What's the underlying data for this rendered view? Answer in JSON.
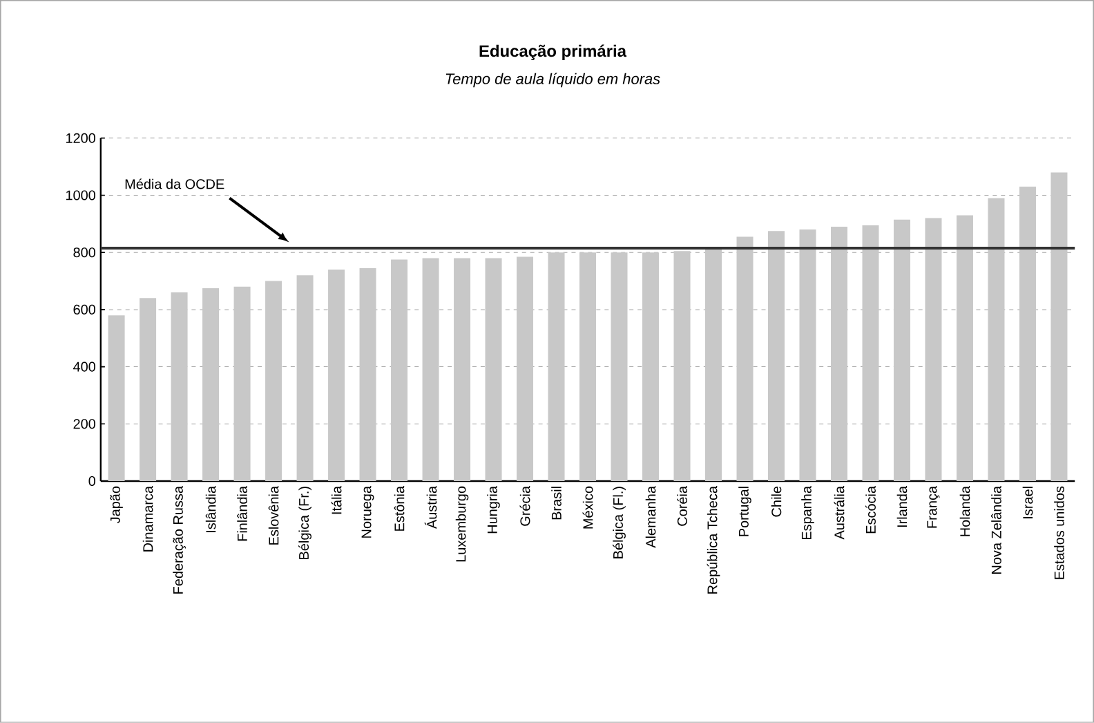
{
  "chart_data": {
    "type": "bar",
    "title": "Educação primária",
    "subtitle": "Tempo de aula líquido em horas",
    "categories": [
      "Japão",
      "Dinamarca",
      "Federação Russa",
      "Islândia",
      "Finlândia",
      "Eslovênia",
      "Bélgica (Fr.)",
      "Itália",
      "Noruega",
      "Estônia",
      "Áustria",
      "Luxemburgo",
      "Hungria",
      "Grécia",
      "Brasil",
      "México",
      "Bélgica (Fl.)",
      "Alemanha",
      "Coréia",
      "República Tcheca",
      "Portugal",
      "Chile",
      "Espanha",
      "Austrália",
      "Escócia",
      "Irlanda",
      "França",
      "Holanda",
      "Nova Zelândia",
      "Israel",
      "Estados unidos"
    ],
    "values": [
      580,
      640,
      660,
      675,
      680,
      700,
      720,
      740,
      745,
      775,
      780,
      780,
      780,
      785,
      800,
      800,
      800,
      800,
      805,
      810,
      855,
      875,
      880,
      890,
      895,
      915,
      920,
      930,
      990,
      1030,
      1080
    ],
    "color": "#c8c8c8",
    "ylim": [
      0,
      1200
    ],
    "yticks": [
      0,
      200,
      400,
      600,
      800,
      1000,
      1200
    ],
    "grid": "y",
    "ref_lines": [
      {
        "axis": "y",
        "value": 815,
        "label": "Média da OCDE",
        "color": "#333333"
      }
    ]
  }
}
